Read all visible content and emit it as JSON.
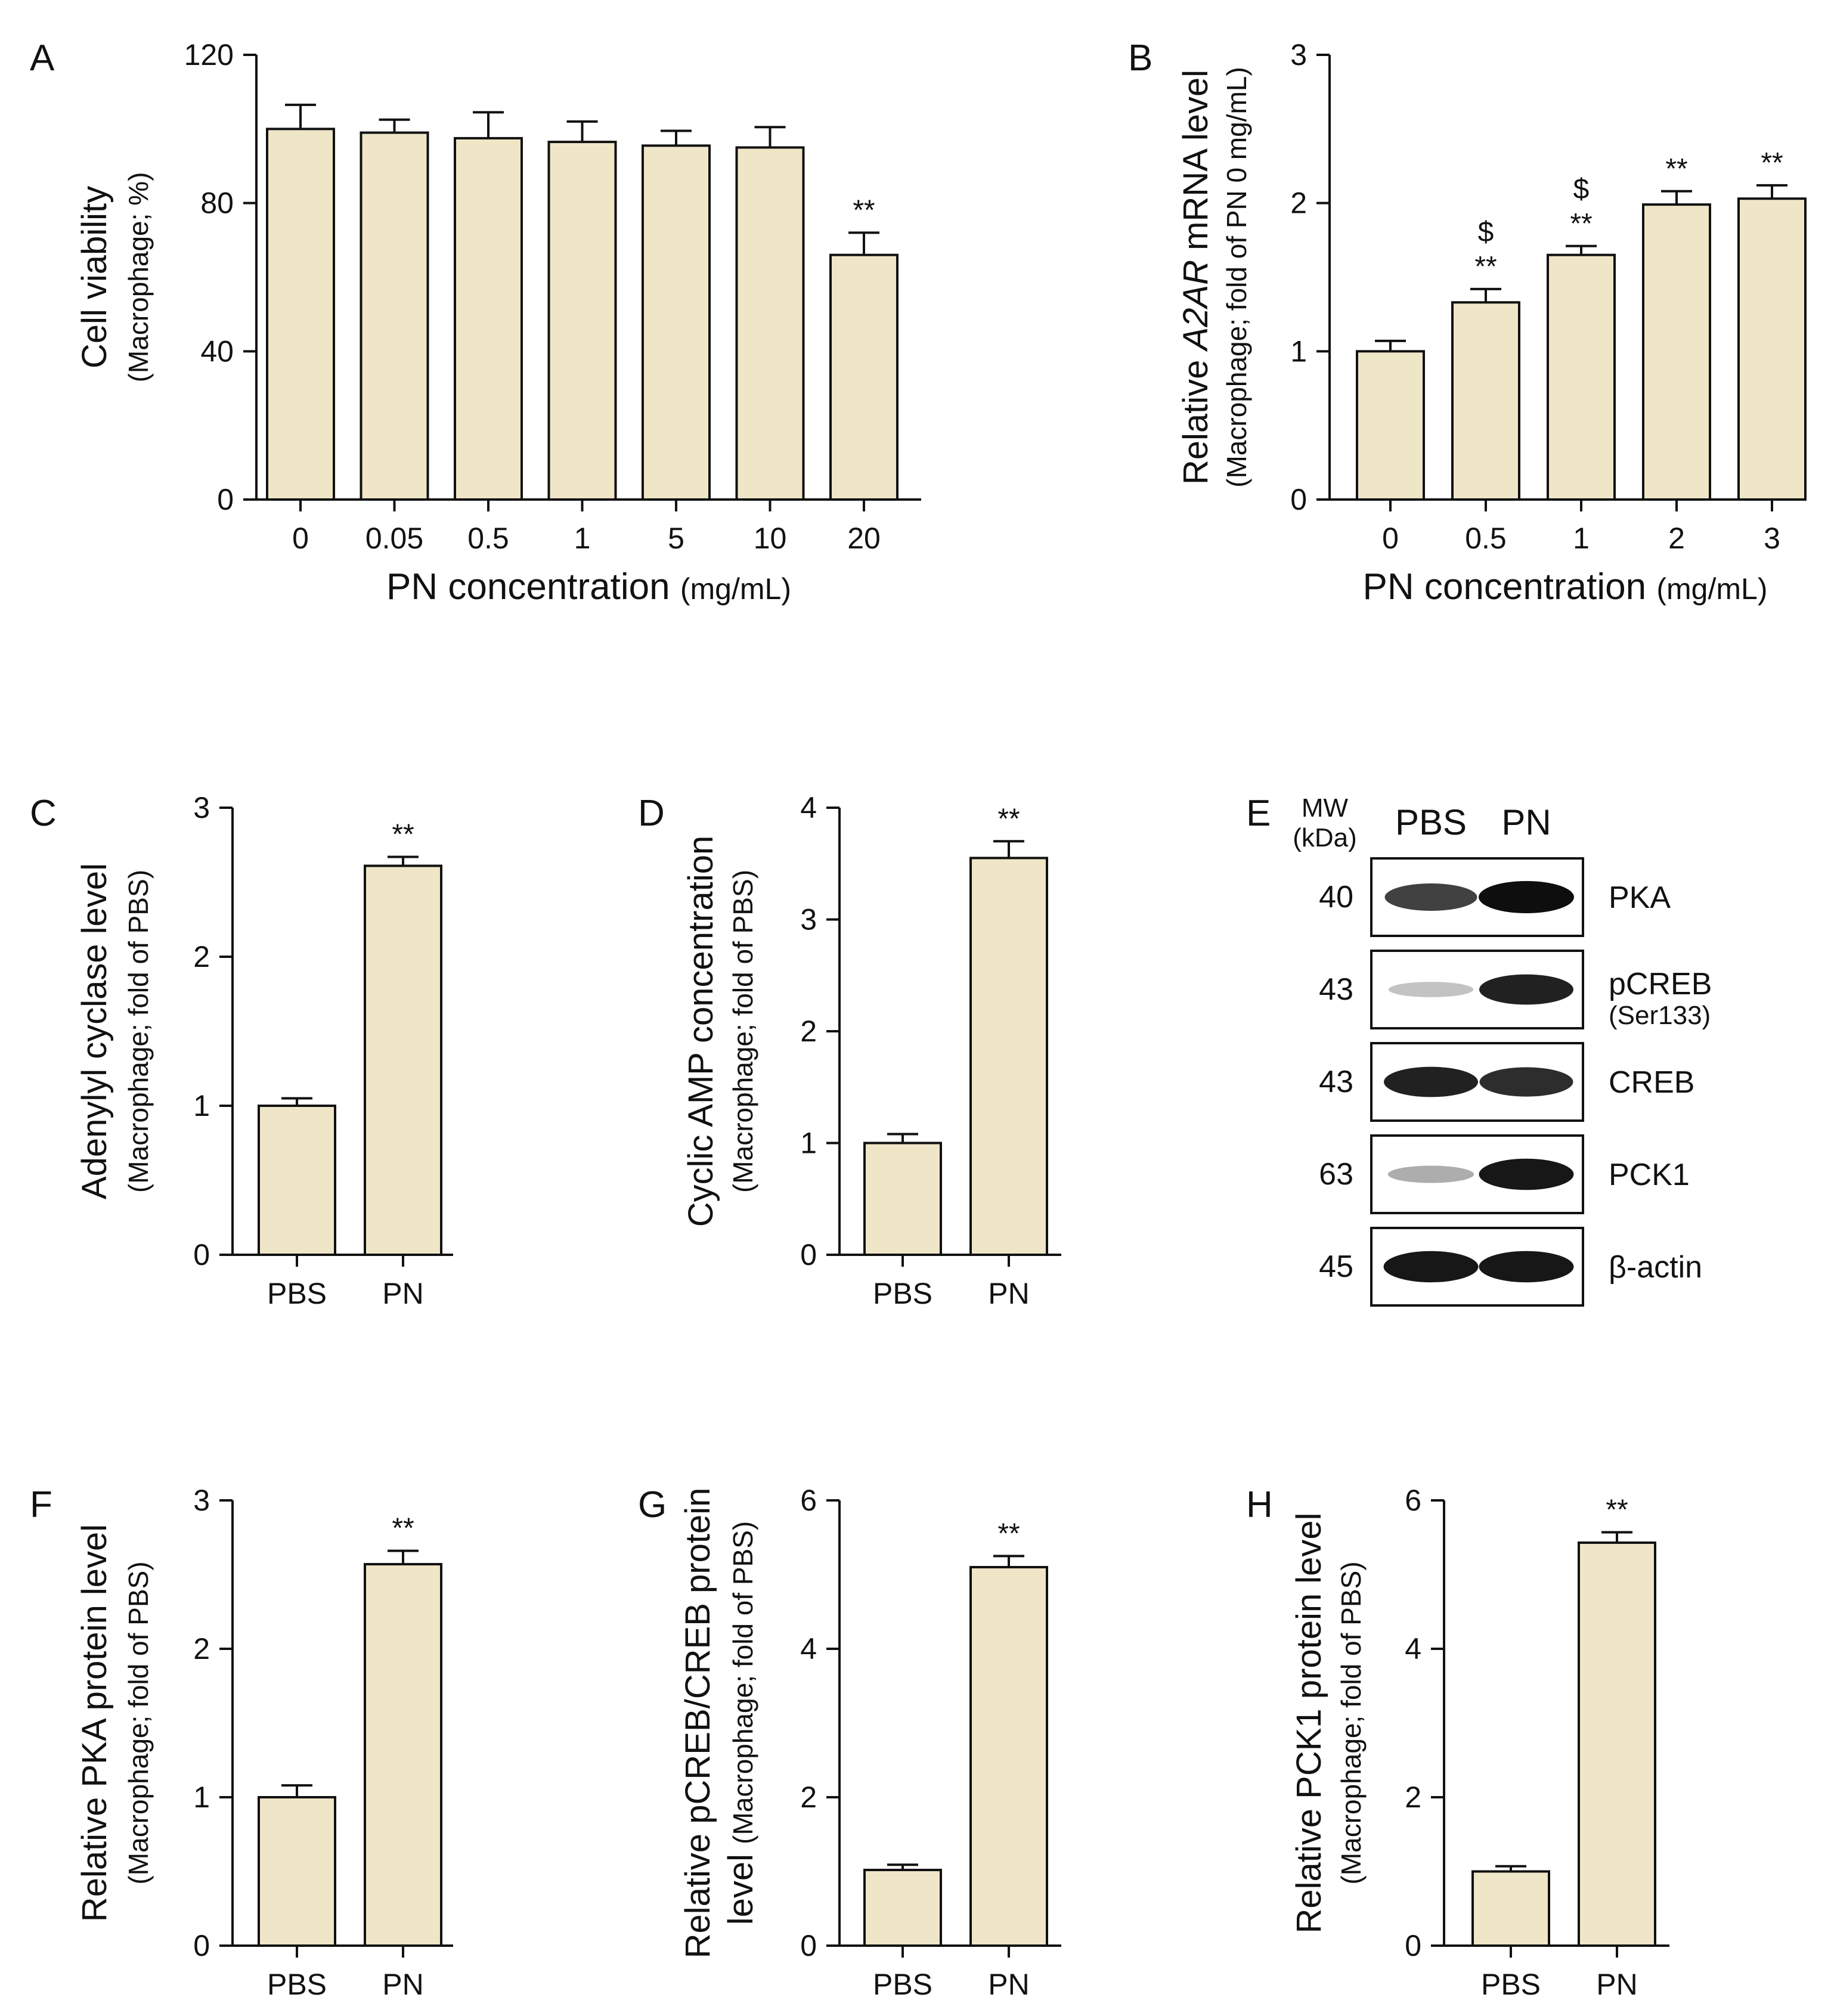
{
  "colors": {
    "bar_fill": "#efe6c8",
    "axis": "#111111",
    "band": "#0e0e0e"
  },
  "chart_data": [
    {
      "id": "A",
      "type": "bar",
      "panel_label": "A",
      "categories": [
        "0",
        "0.05",
        "0.5",
        "1",
        "5",
        "10",
        "20"
      ],
      "values": [
        100,
        99,
        97.5,
        96.5,
        95.5,
        95,
        66
      ],
      "errors": [
        6.5,
        3.5,
        7,
        5.5,
        4,
        5.5,
        6
      ],
      "annotations": [
        "",
        "",
        "",
        "",
        "",
        "",
        "**"
      ],
      "annotations2": [
        "",
        "",
        "",
        "",
        "",
        "",
        ""
      ],
      "ylim": [
        0,
        120
      ],
      "yticks": [
        "0",
        "40",
        "80",
        "120"
      ],
      "ylabel": "Cell viability",
      "ylabel_sub": "(Macrophage; %)",
      "xlabel": "PN concentration",
      "xlabel_sub": "(mg/mL)"
    },
    {
      "id": "B",
      "type": "bar",
      "panel_label": "B",
      "categories": [
        "0",
        "0.5",
        "1",
        "2",
        "3"
      ],
      "values": [
        1.0,
        1.33,
        1.65,
        1.99,
        2.03
      ],
      "errors": [
        0.07,
        0.09,
        0.06,
        0.09,
        0.09
      ],
      "annotations": [
        "",
        "**",
        "**",
        "**",
        "**"
      ],
      "annotations2": [
        "",
        "$",
        "$",
        "",
        ""
      ],
      "ylim": [
        0,
        3
      ],
      "yticks": [
        "0",
        "1",
        "2",
        "3"
      ],
      "ylabel_pre": "Relative ",
      "ylabel_italic": "A2AR",
      "ylabel_post": " mRNA level",
      "ylabel_sub": "(Macrophage; fold of PN 0 mg/mL)",
      "xlabel": "PN concentration",
      "xlabel_sub": "(mg/mL)"
    },
    {
      "id": "C",
      "type": "bar",
      "panel_label": "C",
      "categories": [
        "PBS",
        "PN"
      ],
      "values": [
        1.0,
        2.61
      ],
      "errors": [
        0.05,
        0.06
      ],
      "annotations": [
        "",
        "**"
      ],
      "annotations2": [
        "",
        ""
      ],
      "ylim": [
        0,
        3
      ],
      "yticks": [
        "0",
        "1",
        "2",
        "3"
      ],
      "ylabel": "Adenylyl cyclase level",
      "ylabel_sub": "(Macrophage; fold of PBS)"
    },
    {
      "id": "D",
      "type": "bar",
      "panel_label": "D",
      "categories": [
        "PBS",
        "PN"
      ],
      "values": [
        1.0,
        3.55
      ],
      "errors": [
        0.08,
        0.15
      ],
      "annotations": [
        "",
        "**"
      ],
      "annotations2": [
        "",
        ""
      ],
      "ylim": [
        0,
        4
      ],
      "yticks": [
        "0",
        "1",
        "2",
        "3",
        "4"
      ],
      "ylabel": "Cyclic AMP concentration",
      "ylabel_sub": "(Macrophage; fold of PBS)"
    },
    {
      "id": "F",
      "type": "bar",
      "panel_label": "F",
      "categories": [
        "PBS",
        "PN"
      ],
      "values": [
        1.0,
        2.57
      ],
      "errors": [
        0.08,
        0.09
      ],
      "annotations": [
        "",
        "**"
      ],
      "annotations2": [
        "",
        ""
      ],
      "ylim": [
        0,
        3
      ],
      "yticks": [
        "0",
        "1",
        "2",
        "3"
      ],
      "ylabel": "Relative PKA protein level",
      "ylabel_sub": "(Macrophage; fold of PBS)"
    },
    {
      "id": "G",
      "type": "bar",
      "panel_label": "G",
      "categories": [
        "PBS",
        "PN"
      ],
      "values": [
        1.02,
        5.1
      ],
      "errors": [
        0.07,
        0.15
      ],
      "annotations": [
        "",
        "**"
      ],
      "annotations2": [
        "",
        ""
      ],
      "ylim": [
        0,
        6
      ],
      "yticks": [
        "0",
        "2",
        "4",
        "6"
      ],
      "ylabel": "Relative pCREB/CREB protein",
      "ylabel2": "level",
      "ylabel_sub": "(Macrophage; fold of PBS)"
    },
    {
      "id": "H",
      "type": "bar",
      "panel_label": "H",
      "categories": [
        "PBS",
        "PN"
      ],
      "values": [
        1.0,
        5.43
      ],
      "errors": [
        0.07,
        0.14
      ],
      "annotations": [
        "",
        "**"
      ],
      "annotations2": [
        "",
        ""
      ],
      "ylim": [
        0,
        6
      ],
      "yticks": [
        "0",
        "2",
        "4",
        "6"
      ],
      "ylabel": "Relative PCK1 protein level",
      "ylabel_sub": "(Macrophage; fold of PBS)"
    }
  ],
  "blot": {
    "panel_label": "E",
    "mw_title": "MW",
    "mw_unit": "(kDa)",
    "lanes": [
      "PBS",
      "PN"
    ],
    "rows": [
      {
        "mw": "40",
        "label": "PKA",
        "sublabel": "",
        "intensity": [
          0.75,
          1.0
        ]
      },
      {
        "mw": "43",
        "label": "pCREB",
        "sublabel": "(Ser133)",
        "intensity": [
          0.12,
          0.9
        ]
      },
      {
        "mw": "43",
        "label": "CREB",
        "sublabel": "",
        "intensity": [
          0.9,
          0.85
        ]
      },
      {
        "mw": "63",
        "label": "PCK1",
        "sublabel": "",
        "intensity": [
          0.22,
          0.95
        ]
      },
      {
        "mw": "45",
        "label": "β-actin",
        "sublabel": "",
        "intensity": [
          0.95,
          0.95
        ]
      }
    ]
  }
}
